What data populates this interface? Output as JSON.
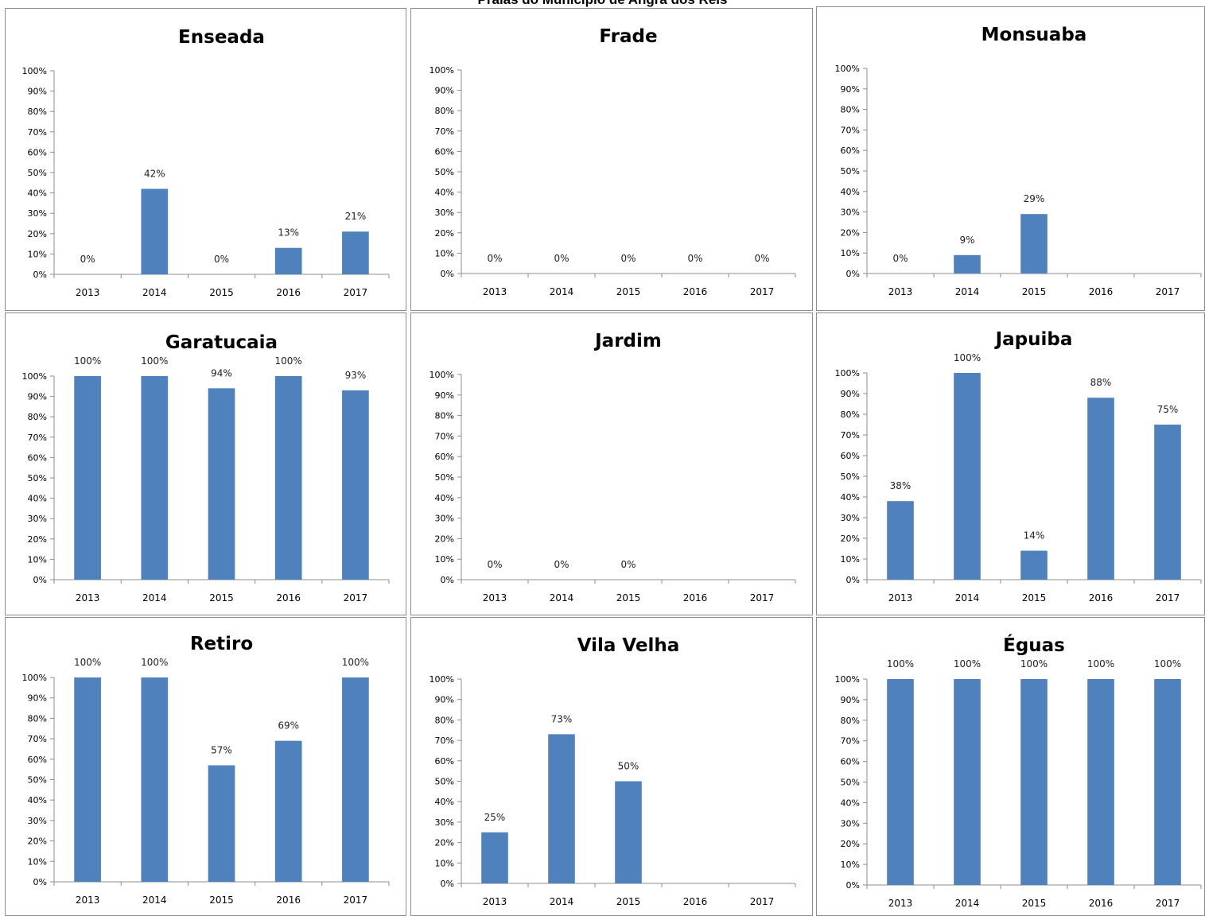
{
  "page": {
    "title": "Praias do Município de Angra dos Reis"
  },
  "style": {
    "bar_color": "#4f81bd",
    "axis_color": "#8c8c8c"
  },
  "chart_data": [
    {
      "type": "bar",
      "title": "Enseada",
      "categories": [
        "2013",
        "2014",
        "2015",
        "2016",
        "2017"
      ],
      "values": [
        0,
        42,
        0,
        13,
        21
      ],
      "value_labels": [
        "0%",
        "42%",
        "0%",
        "13%",
        "21%"
      ],
      "ylim": [
        0,
        100
      ],
      "yticks": [
        "0%",
        "10%",
        "20%",
        "30%",
        "40%",
        "50%",
        "60%",
        "70%",
        "80%",
        "90%",
        "100%"
      ]
    },
    {
      "type": "bar",
      "title": "Frade",
      "categories": [
        "2013",
        "2014",
        "2015",
        "2016",
        "2017"
      ],
      "values": [
        0,
        0,
        0,
        0,
        0
      ],
      "value_labels": [
        "0%",
        "0%",
        "0%",
        "0%",
        "0%"
      ],
      "ylim": [
        0,
        100
      ],
      "yticks": [
        "0%",
        "10%",
        "20%",
        "30%",
        "40%",
        "50%",
        "60%",
        "70%",
        "80%",
        "90%",
        "100%"
      ]
    },
    {
      "type": "bar",
      "title": "Monsuaba",
      "categories": [
        "2013",
        "2014",
        "2015",
        "2016",
        "2017"
      ],
      "values": [
        0,
        9,
        29,
        null,
        null
      ],
      "value_labels": [
        "0%",
        "9%",
        "29%",
        null,
        null
      ],
      "ylim": [
        0,
        100
      ],
      "yticks": [
        "0%",
        "10%",
        "20%",
        "30%",
        "40%",
        "50%",
        "60%",
        "70%",
        "80%",
        "90%",
        "100%"
      ]
    },
    {
      "type": "bar",
      "title": "Garatucaia",
      "categories": [
        "2013",
        "2014",
        "2015",
        "2016",
        "2017"
      ],
      "values": [
        100,
        100,
        94,
        100,
        93
      ],
      "value_labels": [
        "100%",
        "100%",
        "94%",
        "100%",
        "93%"
      ],
      "ylim": [
        0,
        100
      ],
      "yticks": [
        "0%",
        "10%",
        "20%",
        "30%",
        "40%",
        "50%",
        "60%",
        "70%",
        "80%",
        "90%",
        "100%"
      ]
    },
    {
      "type": "bar",
      "title": "Jardim",
      "categories": [
        "2013",
        "2014",
        "2015",
        "2016",
        "2017"
      ],
      "values": [
        0,
        0,
        0,
        null,
        null
      ],
      "value_labels": [
        "0%",
        "0%",
        "0%",
        null,
        null
      ],
      "ylim": [
        0,
        100
      ],
      "yticks": [
        "0%",
        "10%",
        "20%",
        "30%",
        "40%",
        "50%",
        "60%",
        "70%",
        "80%",
        "90%",
        "100%"
      ]
    },
    {
      "type": "bar",
      "title": "Japuiba",
      "categories": [
        "2013",
        "2014",
        "2015",
        "2016",
        "2017"
      ],
      "values": [
        38,
        100,
        14,
        88,
        75
      ],
      "value_labels": [
        "38%",
        "100%",
        "14%",
        "88%",
        "75%"
      ],
      "ylim": [
        0,
        100
      ],
      "yticks": [
        "0%",
        "10%",
        "20%",
        "30%",
        "40%",
        "50%",
        "60%",
        "70%",
        "80%",
        "90%",
        "100%"
      ]
    },
    {
      "type": "bar",
      "title": "Retiro",
      "categories": [
        "2013",
        "2014",
        "2015",
        "2016",
        "2017"
      ],
      "values": [
        100,
        100,
        57,
        69,
        100
      ],
      "value_labels": [
        "100%",
        "100%",
        "57%",
        "69%",
        "100%"
      ],
      "ylim": [
        0,
        100
      ],
      "yticks": [
        "0%",
        "10%",
        "20%",
        "30%",
        "40%",
        "50%",
        "60%",
        "70%",
        "80%",
        "90%",
        "100%"
      ]
    },
    {
      "type": "bar",
      "title": "Vila Velha",
      "categories": [
        "2013",
        "2014",
        "2015",
        "2016",
        "2017"
      ],
      "values": [
        25,
        73,
        50,
        null,
        null
      ],
      "value_labels": [
        "25%",
        "73%",
        "50%",
        null,
        null
      ],
      "ylim": [
        0,
        100
      ],
      "yticks": [
        "0%",
        "10%",
        "20%",
        "30%",
        "40%",
        "50%",
        "60%",
        "70%",
        "80%",
        "90%",
        "100%"
      ]
    },
    {
      "type": "bar",
      "title": "Éguas",
      "categories": [
        "2013",
        "2014",
        "2015",
        "2016",
        "2017"
      ],
      "values": [
        100,
        100,
        100,
        100,
        100
      ],
      "value_labels": [
        "100%",
        "100%",
        "100%",
        "100%",
        "100%"
      ],
      "ylim": [
        0,
        100
      ],
      "yticks": [
        "0%",
        "10%",
        "20%",
        "30%",
        "40%",
        "50%",
        "60%",
        "70%",
        "80%",
        "90%",
        "100%"
      ]
    }
  ]
}
